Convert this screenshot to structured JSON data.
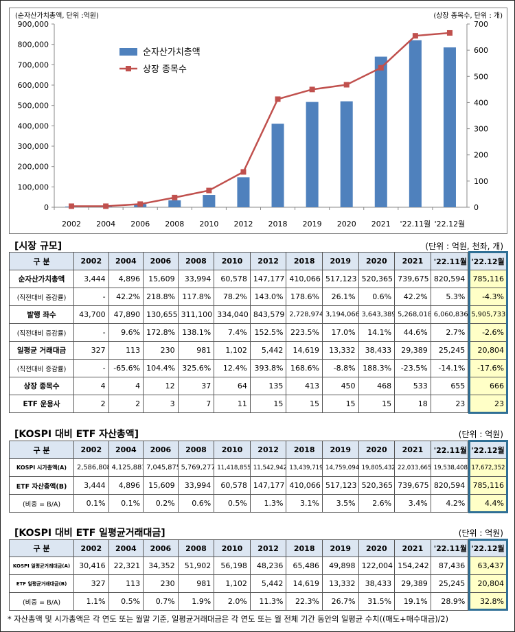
{
  "chart_data": {
    "type": "bar+line",
    "categories": [
      "2002",
      "2004",
      "2006",
      "2008",
      "2010",
      "2012",
      "2018",
      "2019",
      "2020",
      "2021",
      "'22.11월",
      "'22.12월"
    ],
    "series": [
      {
        "name": "순자산가치총액",
        "type": "bar",
        "axis": "left",
        "color": "#4f81bd",
        "values": [
          3444,
          4896,
          15609,
          33994,
          60578,
          147177,
          410066,
          517123,
          520365,
          739675,
          820594,
          785116
        ]
      },
      {
        "name": "상장 종목수",
        "type": "line",
        "axis": "right",
        "color": "#c0504d",
        "values": [
          4,
          4,
          12,
          37,
          64,
          135,
          413,
          450,
          468,
          533,
          655,
          666
        ]
      }
    ],
    "left_axis_label": "(순자산가치총액, 단위 :억원)",
    "right_axis_label": "(상장 종목수, 단위 : 개)",
    "left_ticks": [
      "900,000",
      "800,000",
      "700,000",
      "600,000",
      "500,000",
      "400,000",
      "300,000",
      "200,000",
      "100,000",
      "0"
    ],
    "right_ticks": [
      "700",
      "600",
      "500",
      "400",
      "300",
      "200",
      "100",
      "0"
    ],
    "ylim_left": [
      0,
      900000
    ],
    "ylim_right": [
      0,
      700
    ],
    "legend_position": "top-left"
  },
  "table1": {
    "title": "[시장 규모]",
    "unit": "(단위 : 억원, 천좌, 개)",
    "header": [
      "구 분",
      "2002",
      "2004",
      "2006",
      "2008",
      "2010",
      "2012",
      "2018",
      "2019",
      "2020",
      "2021",
      "'22.11월",
      "'22.12월"
    ],
    "rows": [
      {
        "label": "순자산가치총액",
        "sub": false,
        "cells": [
          "3,444",
          "4,896",
          "15,609",
          "33,994",
          "60,578",
          "147,177",
          "410,066",
          "517,123",
          "520,365",
          "739,675",
          "820,594",
          "785,116"
        ]
      },
      {
        "label": "(직전대비 증감률)",
        "sub": true,
        "cells": [
          "-",
          "42.2%",
          "218.8%",
          "117.8%",
          "78.2%",
          "143.0%",
          "178.6%",
          "26.1%",
          "0.6%",
          "42.2%",
          "5.3%",
          "-4.3%"
        ]
      },
      {
        "label": "발행 좌수",
        "sub": false,
        "cells": [
          "43,700",
          "47,890",
          "130,655",
          "311,100",
          "334,040",
          "843,579",
          "2,728,974",
          "3,194,066",
          "3,643,389",
          "5,268,018",
          "6,060,836",
          "5,905,733"
        ]
      },
      {
        "label": "(직전대비 증감률)",
        "sub": true,
        "cells": [
          "-",
          "9.6%",
          "172.8%",
          "138.1%",
          "7.4%",
          "152.5%",
          "223.5%",
          "17.0%",
          "14.1%",
          "44.6%",
          "2.7%",
          "-2.6%"
        ]
      },
      {
        "label": "일평균 거래대금",
        "sub": false,
        "cells": [
          "327",
          "113",
          "230",
          "981",
          "1,102",
          "5,442",
          "14,619",
          "13,332",
          "38,433",
          "29,389",
          "25,245",
          "20,804"
        ]
      },
      {
        "label": "(직전대비 증감률)",
        "sub": true,
        "cells": [
          "-",
          "-65.6%",
          "104.4%",
          "325.6%",
          "12.4%",
          "393.8%",
          "168.6%",
          "-8.8%",
          "188.3%",
          "-23.5%",
          "-14.1%",
          "-17.6%"
        ]
      },
      {
        "label": "상장 종목수",
        "sub": false,
        "cells": [
          "4",
          "4",
          "12",
          "37",
          "64",
          "135",
          "413",
          "450",
          "468",
          "533",
          "655",
          "666"
        ]
      },
      {
        "label": "ETF 운용사",
        "sub": false,
        "cells": [
          "2",
          "2",
          "3",
          "7",
          "11",
          "15",
          "15",
          "15",
          "15",
          "18",
          "23",
          "23"
        ]
      }
    ]
  },
  "table2": {
    "title": "[KOSPI 대비 ETF 자산총액]",
    "unit": "(단위 : 억원)",
    "header": [
      "구 분",
      "2002",
      "2004",
      "2006",
      "2008",
      "2010",
      "2012",
      "2018",
      "2019",
      "2020",
      "2021",
      "'22.11월",
      "'22.12월"
    ],
    "rows": [
      {
        "label": "KOSPI 시가총액(A)",
        "sub": "tiny-a",
        "cells": [
          "2,586,808",
          "4,125,881",
          "7,045,875",
          "5,769,277",
          "11,418,855",
          "11,542,942",
          "13,439,719",
          "14,759,094",
          "19,805,432",
          "22,033,665",
          "19,538,408",
          "17,672,352"
        ]
      },
      {
        "label": "ETF 자산총액(B)",
        "sub": "mid",
        "cells": [
          "3,444",
          "4,896",
          "15,609",
          "33,994",
          "60,578",
          "147,177",
          "410,066",
          "517,123",
          "520,365",
          "739,675",
          "820,594",
          "785,116"
        ]
      },
      {
        "label": "(비중 = B/A)",
        "sub": true,
        "cells": [
          "0.1%",
          "0.1%",
          "0.2%",
          "0.6%",
          "0.5%",
          "1.3%",
          "3.1%",
          "3.5%",
          "2.6%",
          "3.4%",
          "4.2%",
          "4.4%"
        ]
      }
    ]
  },
  "table3": {
    "title": "[KOSPI 대비 ETF 일평균거래대금]",
    "unit": "(단위 : 억원)",
    "header": [
      "구 분",
      "2002",
      "2004",
      "2006",
      "2008",
      "2010",
      "2012",
      "2018",
      "2019",
      "2020",
      "2021",
      "'22.11월",
      "'22.12월"
    ],
    "rows": [
      {
        "label": "KOSPI 일평균거래대금(A)",
        "sub": "tiny",
        "cells": [
          "30,416",
          "22,321",
          "34,352",
          "51,902",
          "56,198",
          "48,236",
          "65,486",
          "49,898",
          "122,004",
          "154,242",
          "87,436",
          "63,437"
        ]
      },
      {
        "label": "ETF 일평균거래대금(B)",
        "sub": "tiny",
        "cells": [
          "327",
          "113",
          "230",
          "981",
          "1,102",
          "5,442",
          "14,619",
          "13,332",
          "38,433",
          "29,389",
          "25,245",
          "20,804"
        ]
      },
      {
        "label": "(비중 = B/A)",
        "sub": true,
        "cells": [
          "1.1%",
          "0.5%",
          "0.7%",
          "1.9%",
          "2.0%",
          "11.3%",
          "22.3%",
          "26.7%",
          "31.5%",
          "19.1%",
          "28.9%",
          "32.8%"
        ]
      }
    ]
  },
  "footnote": "* 자산총액 및 시가총액은 각 연도 또는 월말 기준, 일평균거래대금은 각 연도 또는 월 전체 기간 동안의 일평균 수치((매도+매수대금)/2)"
}
